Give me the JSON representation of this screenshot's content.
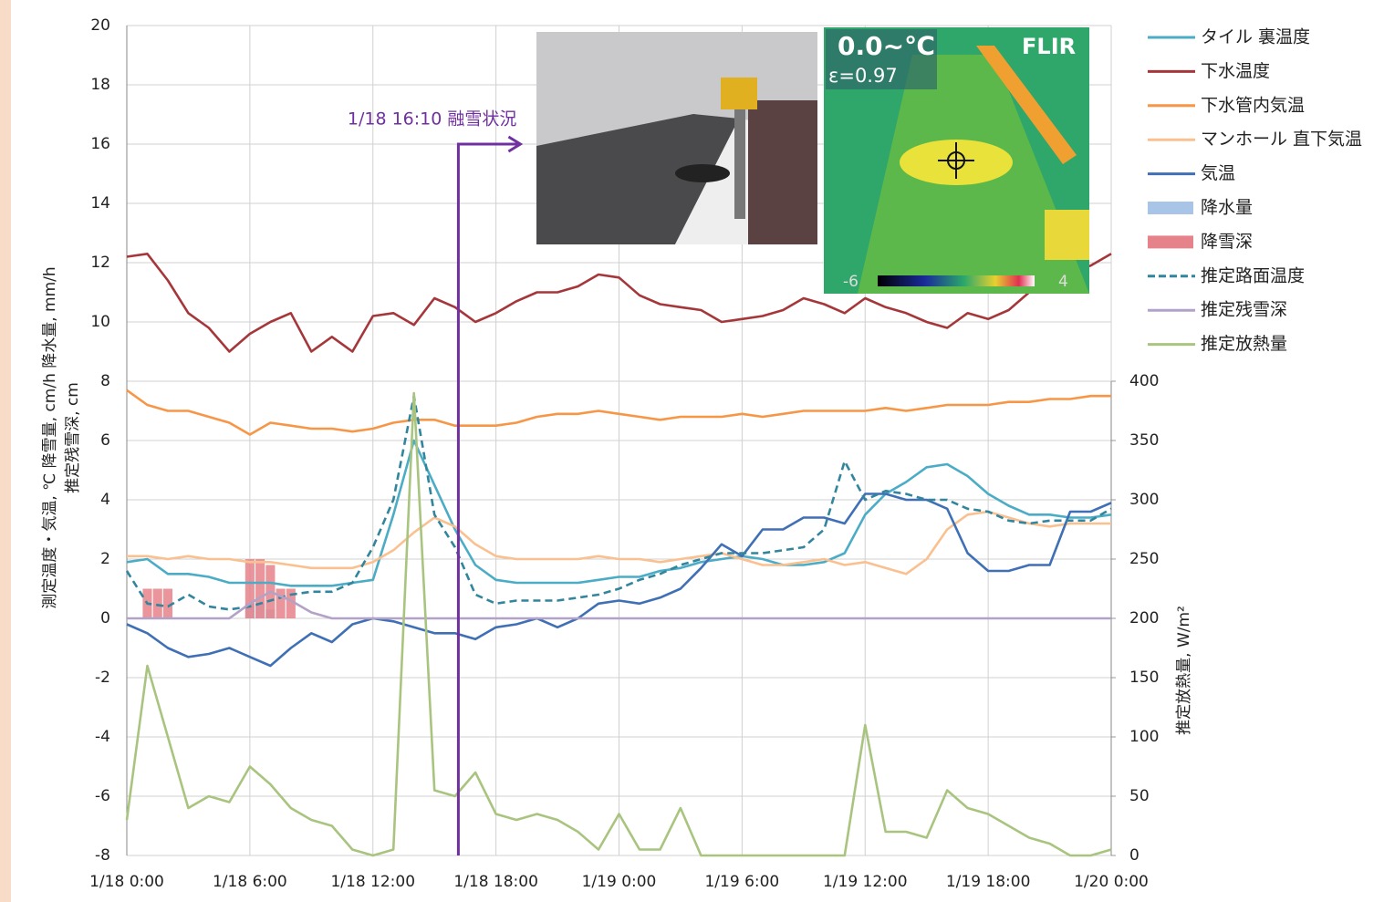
{
  "chart_data": {
    "type": "line",
    "y_label_lines": [
      "測定温度・気温, ℃ 降雪量, cm/h 降水量, mm/h",
      "推定残雪深, cm"
    ],
    "y2_label": "推定放熱量, W/m²",
    "annotation": {
      "text": "1/18 16:10 融雪状況",
      "x": 16.1667,
      "y": 16
    },
    "x": [
      0,
      1,
      2,
      3,
      4,
      5,
      6,
      7,
      8,
      9,
      10,
      11,
      12,
      13,
      14,
      15,
      16,
      17,
      18,
      19,
      20,
      21,
      22,
      23,
      24,
      25,
      26,
      27,
      28,
      29,
      30,
      31,
      32,
      33,
      34,
      35,
      36,
      37,
      38,
      39,
      40,
      41,
      42,
      43,
      44,
      45,
      46,
      47,
      48
    ],
    "xlim": [
      0,
      48
    ],
    "xticks": [
      {
        "value": 0,
        "label": "1/18 0:00"
      },
      {
        "value": 6,
        "label": "1/18 6:00"
      },
      {
        "value": 12,
        "label": "1/18 12:00"
      },
      {
        "value": 18,
        "label": "1/18 18:00"
      },
      {
        "value": 24,
        "label": "1/19 0:00"
      },
      {
        "value": 30,
        "label": "1/19 6:00"
      },
      {
        "value": 36,
        "label": "1/19 12:00"
      },
      {
        "value": 42,
        "label": "1/19 18:00"
      },
      {
        "value": 48,
        "label": "1/20 0:00"
      }
    ],
    "ylim": [
      -8,
      20
    ],
    "yticks": [
      -8,
      -6,
      -4,
      -2,
      0,
      2,
      4,
      6,
      8,
      10,
      12,
      14,
      16,
      18,
      20
    ],
    "y2lim": [
      0,
      400
    ],
    "y2ticks": [
      0,
      50,
      100,
      150,
      200,
      250,
      300,
      350,
      400
    ],
    "grid": true,
    "series": [
      {
        "name": "タイル 裏温度",
        "type": "line",
        "color": "#4bacc6",
        "values": [
          1.9,
          2.0,
          1.5,
          1.5,
          1.4,
          1.2,
          1.2,
          1.2,
          1.1,
          1.1,
          1.1,
          1.2,
          1.3,
          3.5,
          6.0,
          4.5,
          3.0,
          1.8,
          1.3,
          1.2,
          1.2,
          1.2,
          1.2,
          1.3,
          1.4,
          1.4,
          1.6,
          1.7,
          1.9,
          2.0,
          2.1,
          2.0,
          1.8,
          1.8,
          1.9,
          2.2,
          3.5,
          4.2,
          4.6,
          5.1,
          5.2,
          4.8,
          4.2,
          3.8,
          3.5,
          3.5,
          3.4,
          3.4,
          3.5
        ]
      },
      {
        "name": "下水温度",
        "type": "line",
        "color": "#a5373a",
        "values": [
          12.2,
          12.3,
          11.4,
          10.3,
          9.8,
          9.0,
          9.6,
          10.0,
          10.3,
          9.0,
          9.5,
          9.0,
          10.2,
          10.3,
          9.9,
          10.8,
          10.5,
          10.0,
          10.3,
          10.7,
          11.0,
          11.0,
          11.2,
          11.6,
          11.5,
          10.9,
          10.6,
          10.5,
          10.4,
          10.0,
          10.1,
          10.2,
          10.4,
          10.8,
          10.6,
          10.3,
          10.8,
          10.5,
          10.3,
          10.0,
          9.8,
          10.3,
          10.1,
          10.4,
          11.0,
          11.5,
          11.7,
          11.9,
          12.3
        ]
      },
      {
        "name": "下水管内気温",
        "type": "line",
        "color": "#f79646",
        "values": [
          7.7,
          7.2,
          7.0,
          7.0,
          6.8,
          6.6,
          6.2,
          6.6,
          6.5,
          6.4,
          6.4,
          6.3,
          6.4,
          6.6,
          6.7,
          6.7,
          6.5,
          6.5,
          6.5,
          6.6,
          6.8,
          6.9,
          6.9,
          7.0,
          6.9,
          6.8,
          6.7,
          6.8,
          6.8,
          6.8,
          6.9,
          6.8,
          6.9,
          7.0,
          7.0,
          7.0,
          7.0,
          7.1,
          7.0,
          7.1,
          7.2,
          7.2,
          7.2,
          7.3,
          7.3,
          7.4,
          7.4,
          7.5,
          7.5
        ]
      },
      {
        "name": "マンホール 直下気温",
        "type": "line",
        "color": "#fac090",
        "values": [
          2.1,
          2.1,
          2.0,
          2.1,
          2.0,
          2.0,
          1.9,
          1.9,
          1.8,
          1.7,
          1.7,
          1.7,
          1.9,
          2.3,
          2.9,
          3.4,
          3.1,
          2.5,
          2.1,
          2.0,
          2.0,
          2.0,
          2.0,
          2.1,
          2.0,
          2.0,
          1.9,
          2.0,
          2.1,
          2.2,
          2.0,
          1.8,
          1.8,
          1.9,
          2.0,
          1.8,
          1.9,
          1.7,
          1.5,
          2.0,
          3.0,
          3.5,
          3.6,
          3.4,
          3.2,
          3.1,
          3.2,
          3.2,
          3.2
        ]
      },
      {
        "name": "気温",
        "type": "line",
        "color": "#3f6fb5",
        "values": [
          -0.2,
          -0.5,
          -1.0,
          -1.3,
          -1.2,
          -1.0,
          -1.3,
          -1.6,
          -1.0,
          -0.5,
          -0.8,
          -0.2,
          0.0,
          -0.1,
          -0.3,
          -0.5,
          -0.5,
          -0.7,
          -0.3,
          -0.2,
          0.0,
          -0.3,
          0.0,
          0.5,
          0.6,
          0.5,
          0.7,
          1.0,
          1.7,
          2.5,
          2.1,
          3.0,
          3.0,
          3.4,
          3.4,
          3.2,
          4.2,
          4.2,
          4.0,
          4.0,
          3.7,
          2.2,
          1.6,
          1.6,
          1.8,
          1.8,
          3.6,
          3.6,
          3.9
        ]
      },
      {
        "name": "降水量",
        "type": "bar",
        "color": "#a8c4e6",
        "x": [
          6,
          6.5,
          7
        ],
        "values": [
          0.5,
          0.5,
          0.3
        ]
      },
      {
        "name": "降雪深",
        "type": "bar",
        "color": "#e6838a",
        "x": [
          1,
          1.5,
          2,
          6,
          6.5,
          7,
          7.5,
          8
        ],
        "values": [
          1,
          1,
          1,
          2,
          2,
          1.8,
          1,
          1
        ]
      },
      {
        "name": "推定路面温度",
        "type": "line",
        "dash": true,
        "color": "#31859c",
        "values": [
          1.6,
          0.5,
          0.4,
          0.8,
          0.4,
          0.3,
          0.4,
          0.6,
          0.8,
          0.9,
          0.9,
          1.2,
          2.4,
          4.0,
          7.5,
          3.5,
          2.4,
          0.8,
          0.5,
          0.6,
          0.6,
          0.6,
          0.7,
          0.8,
          1.0,
          1.3,
          1.5,
          1.8,
          2.0,
          2.2,
          2.2,
          2.2,
          2.3,
          2.4,
          3.0,
          5.3,
          4.0,
          4.3,
          4.2,
          4.0,
          4.0,
          3.7,
          3.6,
          3.3,
          3.2,
          3.3,
          3.3,
          3.3,
          3.7
        ]
      },
      {
        "name": "推定残雪深",
        "type": "line",
        "color": "#b3a2c7",
        "values": [
          0,
          0,
          0,
          0,
          0,
          0,
          0.5,
          0.9,
          0.6,
          0.2,
          0,
          0,
          0,
          0,
          0,
          0,
          0,
          0,
          0,
          0,
          0,
          0,
          0,
          0,
          0,
          0,
          0,
          0,
          0,
          0,
          0,
          0,
          0,
          0,
          0,
          0,
          0,
          0,
          0,
          0,
          0,
          0,
          0,
          0,
          0,
          0,
          0,
          0,
          0
        ]
      },
      {
        "name": "推定放熱量",
        "type": "line",
        "axis": "y2",
        "color": "#a9c47f",
        "values": [
          30,
          160,
          100,
          40,
          50,
          45,
          75,
          60,
          40,
          30,
          25,
          5,
          0,
          5,
          390,
          55,
          50,
          70,
          35,
          30,
          35,
          30,
          20,
          5,
          35,
          5,
          5,
          40,
          0,
          0,
          0,
          0,
          0,
          0,
          0,
          0,
          110,
          20,
          20,
          15,
          55,
          40,
          35,
          25,
          15,
          10,
          0,
          0,
          5
        ]
      }
    ]
  },
  "images": {
    "thermal_value": "0.0~℃",
    "emissivity": "ε=0.97",
    "brand": "FLIR",
    "scale_min": "-6",
    "scale_max": "4"
  }
}
